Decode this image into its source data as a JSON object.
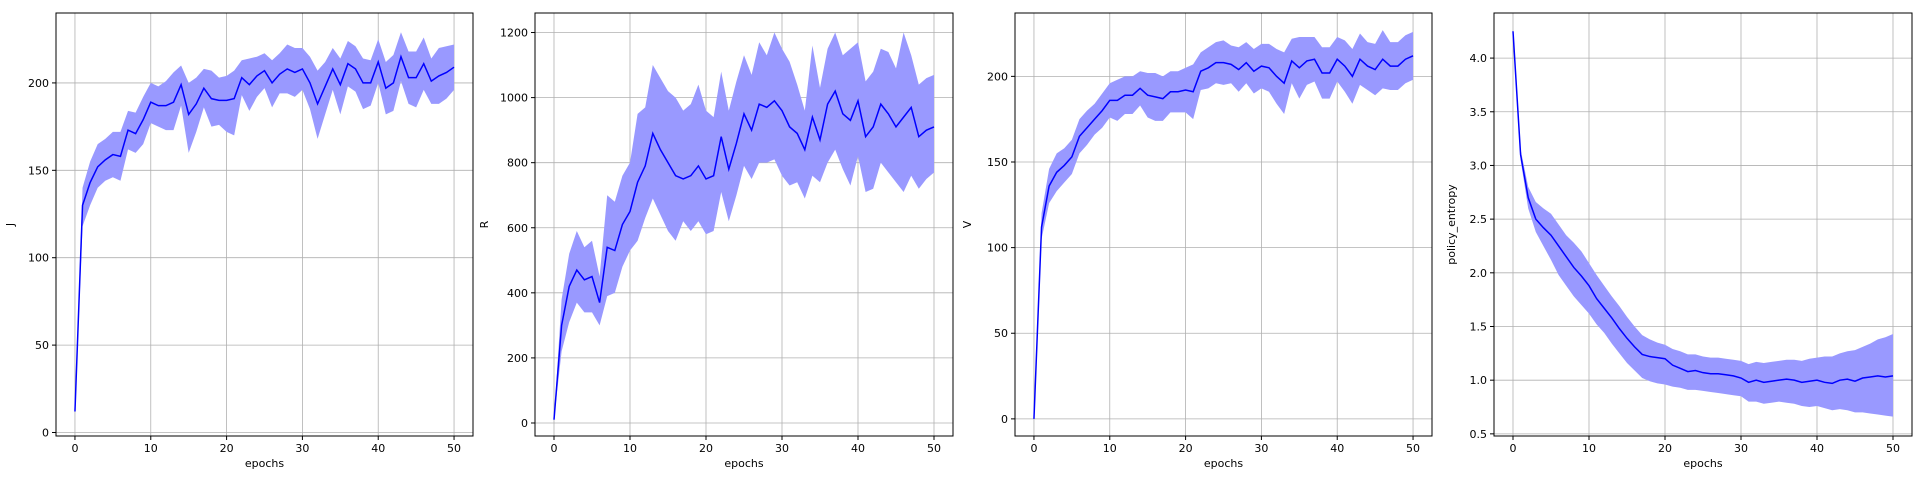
{
  "chart_data": [
    {
      "type": "line",
      "xlabel": "epochs",
      "ylabel": "J",
      "xlim": [
        -2.5,
        52.5
      ],
      "ylim": [
        -2,
        240
      ],
      "xticks": [
        0,
        10,
        20,
        30,
        40,
        50
      ],
      "yticks": [
        0,
        50,
        100,
        150,
        200
      ],
      "grid": true,
      "line_color": "#0000ff",
      "band_color": "#9999ff",
      "x": [
        0,
        1,
        2,
        3,
        4,
        5,
        6,
        7,
        8,
        9,
        10,
        11,
        12,
        13,
        14,
        15,
        16,
        17,
        18,
        19,
        20,
        21,
        22,
        23,
        24,
        25,
        26,
        27,
        28,
        29,
        30,
        31,
        32,
        33,
        34,
        35,
        36,
        37,
        38,
        39,
        40,
        41,
        42,
        43,
        44,
        45,
        46,
        47,
        48,
        49,
        50
      ],
      "mean": [
        12,
        130,
        143,
        152,
        156,
        159,
        158,
        173,
        171,
        179,
        189,
        187,
        187,
        189,
        199,
        182,
        188,
        197,
        191,
        190,
        190,
        191,
        203,
        199,
        204,
        207,
        200,
        205,
        208,
        206,
        208,
        200,
        188,
        198,
        208,
        199,
        211,
        208,
        200,
        200,
        212,
        197,
        200,
        215,
        203,
        203,
        211,
        201,
        204,
        206,
        209
      ],
      "upper": [
        12,
        140,
        155,
        165,
        168,
        172,
        172,
        184,
        183,
        192,
        200,
        198,
        201,
        206,
        210,
        200,
        203,
        208,
        207,
        203,
        204,
        207,
        213,
        214,
        215,
        217,
        213,
        217,
        222,
        220,
        220,
        215,
        207,
        212,
        220,
        214,
        224,
        221,
        214,
        213,
        225,
        212,
        216,
        229,
        218,
        218,
        226,
        214,
        220,
        221,
        222
      ],
      "lower": [
        12,
        118,
        130,
        140,
        144,
        146,
        144,
        162,
        160,
        165,
        177,
        175,
        173,
        173,
        187,
        160,
        172,
        186,
        175,
        176,
        172,
        170,
        193,
        184,
        192,
        197,
        186,
        194,
        194,
        192,
        196,
        185,
        168,
        182,
        196,
        182,
        198,
        195,
        185,
        187,
        200,
        182,
        184,
        201,
        188,
        186,
        196,
        188,
        188,
        191,
        196
      ]
    },
    {
      "type": "line",
      "xlabel": "epochs",
      "ylabel": "R",
      "xlim": [
        -2.5,
        52.5
      ],
      "ylim": [
        -40,
        1260
      ],
      "xticks": [
        0,
        10,
        20,
        30,
        40,
        50
      ],
      "yticks": [
        0,
        200,
        400,
        600,
        800,
        1000,
        1200
      ],
      "grid": true,
      "line_color": "#0000ff",
      "band_color": "#9999ff",
      "x": [
        0,
        1,
        2,
        3,
        4,
        5,
        6,
        7,
        8,
        9,
        10,
        11,
        12,
        13,
        14,
        15,
        16,
        17,
        18,
        19,
        20,
        21,
        22,
        23,
        24,
        25,
        26,
        27,
        28,
        29,
        30,
        31,
        32,
        33,
        34,
        35,
        36,
        37,
        38,
        39,
        40,
        41,
        42,
        43,
        44,
        45,
        46,
        47,
        48,
        49,
        50
      ],
      "mean": [
        10,
        300,
        420,
        470,
        440,
        450,
        370,
        540,
        530,
        610,
        650,
        740,
        790,
        890,
        840,
        800,
        760,
        750,
        760,
        790,
        750,
        760,
        880,
        780,
        860,
        950,
        900,
        980,
        970,
        990,
        960,
        910,
        890,
        840,
        940,
        870,
        980,
        1020,
        950,
        930,
        990,
        880,
        910,
        980,
        950,
        910,
        940,
        970,
        880,
        900,
        910
      ],
      "upper": [
        10,
        380,
        520,
        590,
        540,
        560,
        450,
        700,
        680,
        760,
        800,
        950,
        970,
        1100,
        1060,
        1020,
        1000,
        960,
        980,
        1040,
        960,
        940,
        1080,
        960,
        1050,
        1130,
        1070,
        1170,
        1130,
        1200,
        1150,
        1110,
        1040,
        960,
        1160,
        1030,
        1150,
        1200,
        1130,
        1150,
        1170,
        1050,
        1080,
        1150,
        1140,
        1090,
        1200,
        1130,
        1040,
        1060,
        1070
      ],
      "lower": [
        10,
        220,
        310,
        370,
        340,
        340,
        300,
        390,
        400,
        480,
        530,
        560,
        630,
        690,
        640,
        590,
        560,
        620,
        590,
        620,
        580,
        590,
        710,
        620,
        700,
        790,
        750,
        800,
        800,
        810,
        760,
        730,
        740,
        690,
        760,
        740,
        800,
        840,
        780,
        730,
        820,
        710,
        720,
        800,
        770,
        740,
        710,
        760,
        720,
        750,
        770
      ]
    },
    {
      "type": "line",
      "xlabel": "epochs",
      "ylabel": "V",
      "xlim": [
        -2.5,
        52.5
      ],
      "ylim": [
        -10,
        237
      ],
      "xticks": [
        0,
        10,
        20,
        30,
        40,
        50
      ],
      "yticks": [
        0,
        50,
        100,
        150,
        200
      ],
      "grid": true,
      "line_color": "#0000ff",
      "band_color": "#9999ff",
      "x": [
        0,
        1,
        2,
        3,
        4,
        5,
        6,
        7,
        8,
        9,
        10,
        11,
        12,
        13,
        14,
        15,
        16,
        17,
        18,
        19,
        20,
        21,
        22,
        23,
        24,
        25,
        26,
        27,
        28,
        29,
        30,
        31,
        32,
        33,
        34,
        35,
        36,
        37,
        38,
        39,
        40,
        41,
        42,
        43,
        44,
        45,
        46,
        47,
        48,
        49,
        50
      ],
      "mean": [
        0,
        112,
        136,
        144,
        148,
        153,
        165,
        170,
        175,
        180,
        186,
        186,
        189,
        189,
        193,
        189,
        188,
        187,
        191,
        191,
        192,
        191,
        203,
        205,
        208,
        208,
        207,
        204,
        208,
        203,
        206,
        205,
        200,
        196,
        209,
        205,
        209,
        210,
        202,
        202,
        210,
        206,
        200,
        210,
        206,
        204,
        210,
        206,
        206,
        210,
        212
      ],
      "upper": [
        0,
        120,
        146,
        155,
        158,
        163,
        175,
        180,
        184,
        190,
        196,
        198,
        200,
        200,
        203,
        202,
        202,
        200,
        203,
        203,
        205,
        207,
        214,
        217,
        220,
        221,
        218,
        217,
        220,
        216,
        219,
        219,
        216,
        214,
        222,
        223,
        223,
        223,
        217,
        217,
        223,
        221,
        216,
        225,
        220,
        219,
        227,
        220,
        220,
        224,
        226
      ],
      "lower": [
        0,
        105,
        126,
        133,
        138,
        143,
        155,
        160,
        166,
        170,
        176,
        174,
        178,
        178,
        183,
        176,
        174,
        174,
        179,
        179,
        179,
        175,
        192,
        193,
        196,
        195,
        196,
        191,
        196,
        190,
        193,
        191,
        184,
        178,
        196,
        187,
        195,
        197,
        187,
        187,
        197,
        191,
        184,
        195,
        192,
        189,
        193,
        192,
        192,
        196,
        198
      ]
    },
    {
      "type": "line",
      "xlabel": "epochs",
      "ylabel": "policy_entropy",
      "xlim": [
        -2.5,
        52.5
      ],
      "ylim": [
        0.48,
        4.42
      ],
      "xticks": [
        0,
        10,
        20,
        30,
        40,
        50
      ],
      "yticks": [
        0.5,
        1.0,
        1.5,
        2.0,
        2.5,
        3.0,
        3.5,
        4.0
      ],
      "grid": true,
      "line_color": "#0000ff",
      "band_color": "#9999ff",
      "x": [
        0,
        1,
        2,
        3,
        4,
        5,
        6,
        7,
        8,
        9,
        10,
        11,
        12,
        13,
        14,
        15,
        16,
        17,
        18,
        19,
        20,
        21,
        22,
        23,
        24,
        25,
        26,
        27,
        28,
        29,
        30,
        31,
        32,
        33,
        34,
        35,
        36,
        37,
        38,
        39,
        40,
        41,
        42,
        43,
        44,
        45,
        46,
        47,
        48,
        49,
        50
      ],
      "mean": [
        4.25,
        3.1,
        2.7,
        2.5,
        2.42,
        2.35,
        2.25,
        2.15,
        2.05,
        1.97,
        1.88,
        1.76,
        1.67,
        1.58,
        1.48,
        1.39,
        1.31,
        1.24,
        1.22,
        1.21,
        1.2,
        1.14,
        1.11,
        1.08,
        1.09,
        1.07,
        1.06,
        1.06,
        1.05,
        1.04,
        1.02,
        0.98,
        1.0,
        0.98,
        0.99,
        1.0,
        1.01,
        1.0,
        0.98,
        0.99,
        1.0,
        0.98,
        0.97,
        1.0,
        1.01,
        0.99,
        1.02,
        1.03,
        1.04,
        1.03,
        1.04
      ],
      "upper": [
        4.25,
        3.15,
        2.8,
        2.66,
        2.6,
        2.55,
        2.45,
        2.35,
        2.28,
        2.2,
        2.09,
        1.98,
        1.88,
        1.78,
        1.69,
        1.59,
        1.5,
        1.42,
        1.38,
        1.35,
        1.33,
        1.29,
        1.27,
        1.24,
        1.24,
        1.22,
        1.21,
        1.21,
        1.2,
        1.19,
        1.18,
        1.15,
        1.17,
        1.16,
        1.17,
        1.18,
        1.19,
        1.19,
        1.18,
        1.2,
        1.21,
        1.22,
        1.22,
        1.25,
        1.27,
        1.28,
        1.31,
        1.34,
        1.38,
        1.4,
        1.43
      ],
      "lower": [
        4.25,
        3.05,
        2.6,
        2.38,
        2.25,
        2.12,
        1.98,
        1.88,
        1.78,
        1.7,
        1.62,
        1.52,
        1.44,
        1.34,
        1.25,
        1.16,
        1.09,
        1.02,
        0.99,
        0.97,
        0.96,
        0.94,
        0.93,
        0.91,
        0.91,
        0.9,
        0.89,
        0.88,
        0.87,
        0.86,
        0.85,
        0.8,
        0.8,
        0.78,
        0.79,
        0.8,
        0.79,
        0.78,
        0.76,
        0.75,
        0.76,
        0.74,
        0.72,
        0.73,
        0.72,
        0.7,
        0.7,
        0.69,
        0.68,
        0.67,
        0.66
      ]
    }
  ]
}
